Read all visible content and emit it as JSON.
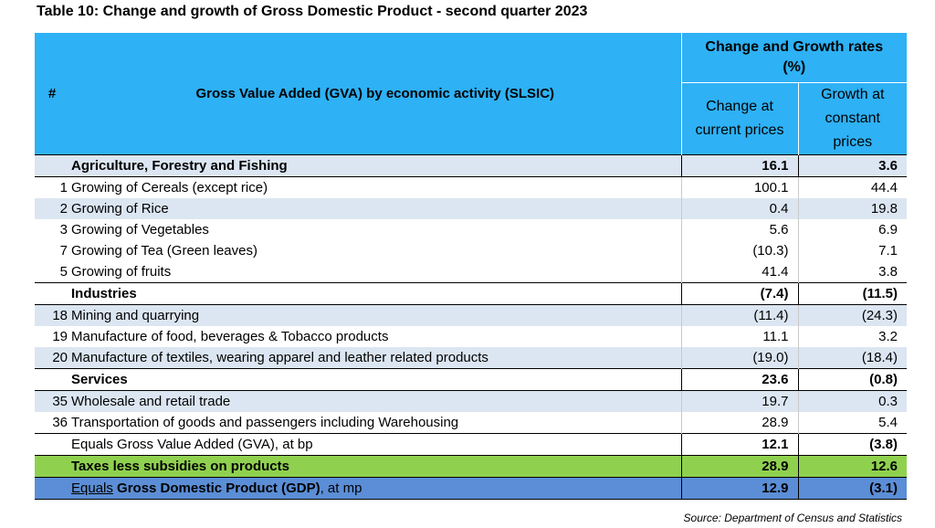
{
  "title": "Table 10: Change and growth of Gross Domestic Product - second quarter 2023",
  "header": {
    "num": "#",
    "activity": "Gross Value Added (GVA) by economic activity (SLSIC)",
    "group_line1": "Change and Growth rates",
    "group_line2": "(%)",
    "change_line1": "Change at",
    "change_line2": "current prices",
    "growth_line1": "Growth at",
    "growth_line2": "constant",
    "growth_line3": "prices"
  },
  "rows": [
    {
      "code": "",
      "label": "Agriculture, Forestry and Fishing",
      "change": "16.1",
      "growth": "3.6"
    },
    {
      "code": "1",
      "label": "Growing of Cereals (except rice)",
      "change": "100.1",
      "growth": "44.4"
    },
    {
      "code": "2",
      "label": "Growing of Rice",
      "change": "0.4",
      "growth": "19.8"
    },
    {
      "code": "3",
      "label": "Growing of Vegetables",
      "change": "5.6",
      "growth": "6.9"
    },
    {
      "code": "7",
      "label": "Growing of Tea (Green leaves)",
      "change": "(10.3)",
      "growth": "7.1"
    },
    {
      "code": "5",
      "label": "Growing of fruits",
      "change": "41.4",
      "growth": "3.8"
    },
    {
      "code": "",
      "label": "Industries",
      "change": "(7.4)",
      "growth": "(11.5)"
    },
    {
      "code": "18",
      "label": "Mining and quarrying",
      "change": "(11.4)",
      "growth": "(24.3)"
    },
    {
      "code": "19",
      "label": "Manufacture of food, beverages & Tobacco products",
      "change": "11.1",
      "growth": "3.2"
    },
    {
      "code": "20",
      "label": "Manufacture of textiles, wearing apparel and leather related products",
      "change": "(19.0)",
      "growth": "(18.4)"
    },
    {
      "code": "",
      "label": "Services",
      "change": "23.6",
      "growth": "(0.8)"
    },
    {
      "code": "35",
      "label": "Wholesale and retail trade",
      "change": "19.7",
      "growth": "0.3"
    },
    {
      "code": "36",
      "label": "Transportation of goods and passengers including Warehousing",
      "change": "28.9",
      "growth": "5.4"
    }
  ],
  "gva": {
    "label": "Equals Gross Value Added (GVA), at bp",
    "change": "12.1",
    "growth": "(3.8)"
  },
  "taxes": {
    "label": "Taxes less subsidies on products",
    "change": "28.9",
    "growth": "12.6"
  },
  "gdp": {
    "label_prefix": "Equals",
    "label_rest": " Gross Domestic Product (GDP)",
    "label_suffix": ", at mp",
    "change": "12.9",
    "growth": "(3.1)"
  },
  "source": "Source: Department of Census and Statistics",
  "colors": {
    "header": "#2eb1f5",
    "shade": "#dce6f2",
    "taxes": "#8fd14f",
    "gdp": "#5b8ed6"
  }
}
